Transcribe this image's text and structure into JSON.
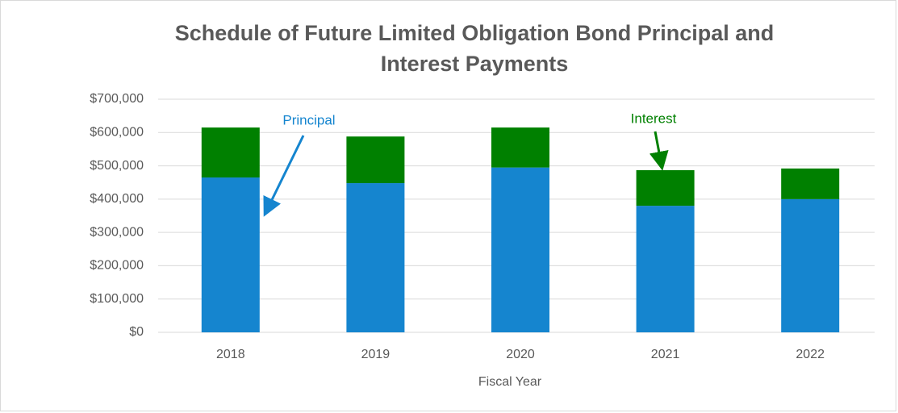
{
  "chart_data": {
    "type": "bar",
    "stacked": true,
    "title": "Schedule of Future Limited Obligation Bond Principal and Interest Payments",
    "x_label": "Fiscal Year",
    "categories": [
      "2018",
      "2019",
      "2020",
      "2021",
      "2022"
    ],
    "series": [
      {
        "name": "Principal",
        "color": "#1585cf",
        "values": [
          465000,
          448000,
          495000,
          380000,
          400000
        ]
      },
      {
        "name": "Interest",
        "color": "#008000",
        "values": [
          150000,
          140000,
          120000,
          107000,
          92000
        ]
      }
    ],
    "ylim": [
      0,
      700000
    ],
    "yticks": [
      {
        "value": 0,
        "label": "$0"
      },
      {
        "value": 100000,
        "label": "$100,000"
      },
      {
        "value": 200000,
        "label": "$200,000"
      },
      {
        "value": 300000,
        "label": "$300,000"
      },
      {
        "value": 400000,
        "label": "$400,000"
      },
      {
        "value": 500000,
        "label": "$500,000"
      },
      {
        "value": 600000,
        "label": "$600,000"
      },
      {
        "value": 700000,
        "label": "$700,000"
      }
    ],
    "grid": true
  }
}
